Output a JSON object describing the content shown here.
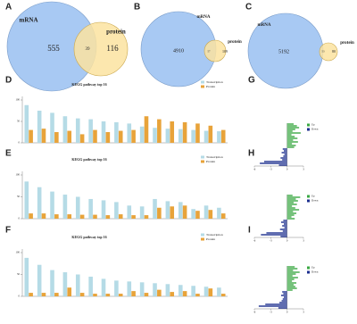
{
  "chart_data": [
    {
      "type": "venn",
      "panel": "A",
      "sets": [
        "mRNA",
        "protein"
      ],
      "values": [
        555,
        39,
        116
      ],
      "colors": [
        "#a8c9f3",
        "#fbe3a0"
      ]
    },
    {
      "type": "venn",
      "panel": "B",
      "sets": [
        "mRNA",
        "protein"
      ],
      "values": [
        4910,
        57,
        109
      ],
      "colors": [
        "#a8c9f3",
        "#fbe3a0"
      ]
    },
    {
      "type": "venn",
      "panel": "C",
      "sets": [
        "mRNA",
        "protein"
      ],
      "values": [
        5192,
        53,
        80
      ],
      "colors": [
        "#a8c9f3",
        "#fbe3a0"
      ]
    },
    {
      "type": "bar",
      "panel": "D",
      "title": "KEGG pathway top 16",
      "categories": [
        null,
        null,
        null,
        null,
        null,
        null,
        null,
        null,
        null,
        null,
        null,
        null,
        null,
        null,
        null,
        null
      ],
      "series": [
        {
          "name": "Transcription",
          "color": "#b5dbe6",
          "values": [
            88,
            75,
            70,
            62,
            57,
            55,
            50,
            48,
            45,
            38,
            35,
            33,
            32,
            30,
            28,
            27
          ]
        },
        {
          "name": "Protein",
          "color": "#e8a33a",
          "values": [
            30,
            33,
            25,
            28,
            20,
            30,
            25,
            28,
            30,
            62,
            55,
            50,
            48,
            45,
            40,
            30
          ]
        }
      ],
      "ylim": [
        0,
        100
      ],
      "yticks": [
        0,
        50,
        100
      ]
    },
    {
      "type": "bar",
      "panel": "E",
      "title": "KEGG pathway top 16",
      "categories": [
        null,
        null,
        null,
        null,
        null,
        null,
        null,
        null,
        null,
        null,
        null,
        null,
        null,
        null,
        null,
        null
      ],
      "series": [
        {
          "name": "Transcription",
          "color": "#b5dbe6",
          "values": [
            85,
            72,
            62,
            55,
            50,
            45,
            42,
            38,
            30,
            28,
            45,
            40,
            38,
            22,
            30,
            25
          ]
        },
        {
          "name": "Protein",
          "color": "#e8a33a",
          "values": [
            12,
            12,
            10,
            10,
            9,
            9,
            8,
            10,
            8,
            8,
            25,
            28,
            30,
            18,
            20,
            12
          ]
        }
      ],
      "ylim": [
        0,
        100
      ],
      "yticks": [
        0,
        50,
        100
      ]
    },
    {
      "type": "bar",
      "panel": "F",
      "title": "KEGG pathway top 16",
      "categories": [
        null,
        null,
        null,
        null,
        null,
        null,
        null,
        null,
        null,
        null,
        null,
        null,
        null,
        null,
        null,
        null
      ],
      "series": [
        {
          "name": "Transcription",
          "color": "#b5dbe6",
          "values": [
            88,
            72,
            60,
            55,
            50,
            45,
            40,
            36,
            34,
            32,
            30,
            28,
            26,
            24,
            22,
            20
          ]
        },
        {
          "name": "Protein",
          "color": "#e8a33a",
          "values": [
            8,
            8,
            8,
            20,
            8,
            6,
            6,
            6,
            12,
            8,
            15,
            10,
            12,
            6,
            18,
            6
          ]
        }
      ],
      "ylim": [
        0,
        100
      ],
      "yticks": [
        0,
        50,
        100
      ]
    },
    {
      "type": "hbar",
      "panel": "G",
      "legend": [
        "Up",
        "Down"
      ],
      "pos_color": "#3aa843",
      "neg_color": "#1c2f8f",
      "categories": [
        null,
        null,
        null,
        null,
        null,
        null,
        null,
        null,
        null,
        null,
        null,
        null,
        null,
        null,
        null,
        null,
        null,
        null,
        null,
        null,
        null,
        null,
        null,
        null
      ],
      "values": [
        1.2,
        1.8,
        2.2,
        1.5,
        1.0,
        2.5,
        0.8,
        1.4,
        1.9,
        1.1,
        2.0,
        0.9,
        1.6,
        1.3,
        -0.8,
        -0.6,
        -1.0,
        -0.5,
        -0.7,
        -1.2,
        -0.9,
        -4.2,
        -5.0,
        -1.5
      ],
      "xlim": [
        -6,
        3
      ],
      "xticks": [
        -6,
        -3,
        0,
        3
      ]
    },
    {
      "type": "hbar",
      "panel": "H",
      "legend": [
        "Up",
        "Down"
      ],
      "pos_color": "#3aa843",
      "neg_color": "#1c2f8f",
      "categories": [
        null,
        null,
        null,
        null,
        null,
        null,
        null,
        null,
        null,
        null,
        null,
        null,
        null,
        null,
        null,
        null,
        null,
        null,
        null,
        null,
        null,
        null,
        null,
        null
      ],
      "values": [
        1.0,
        2.4,
        1.6,
        2.0,
        1.2,
        1.8,
        0.9,
        1.5,
        2.2,
        1.1,
        1.7,
        1.3,
        0.8,
        1.4,
        -0.7,
        -1.1,
        -0.6,
        -0.9,
        -0.5,
        -1.3,
        -0.8,
        -3.8,
        -4.8,
        -1.2
      ],
      "xlim": [
        -6,
        3
      ],
      "xticks": [
        -6,
        -3,
        0,
        3
      ]
    },
    {
      "type": "hbar",
      "panel": "I",
      "legend": [
        "Up",
        "Down"
      ],
      "pos_color": "#3aa843",
      "neg_color": "#1c2f8f",
      "categories": [
        null,
        null,
        null,
        null,
        null,
        null,
        null,
        null,
        null,
        null,
        null,
        null,
        null,
        null,
        null,
        null,
        null,
        null,
        null,
        null,
        null,
        null,
        null,
        null
      ],
      "values": [
        1.4,
        1.9,
        1.1,
        2.3,
        1.6,
        1.0,
        2.0,
        1.3,
        0.9,
        1.7,
        1.2,
        1.5,
        1.8,
        1.0,
        -0.9,
        -0.7,
        -1.1,
        -0.6,
        -0.8,
        -1.0,
        -1.4,
        -4.0,
        -5.2,
        -1.6
      ],
      "xlim": [
        -6,
        3
      ],
      "xticks": [
        -6,
        -3,
        0,
        3
      ]
    }
  ]
}
